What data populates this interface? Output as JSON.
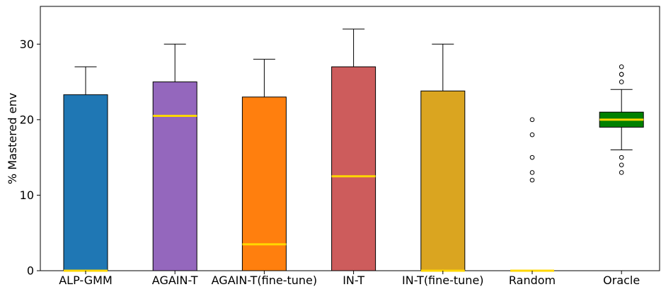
{
  "chart_data": {
    "type": "box",
    "categories": [
      "ALP-GMM",
      "AGAIN-T",
      "AGAIN-T(fine-tune)",
      "IN-T",
      "IN-T(fine-tune)",
      "Random",
      "Oracle"
    ],
    "ylabel": "% Mastered env",
    "xlabel": "",
    "title": "",
    "ylim": [
      0,
      35
    ],
    "yticks": [
      "0",
      "10",
      "20",
      "30"
    ],
    "grid": false,
    "median_color": "#FFD700",
    "boxes": [
      {
        "name": "ALP-GMM",
        "color": "#1f77b4",
        "whislo": 0,
        "q1": 0,
        "med": 0,
        "q3": 23.3,
        "whishi": 27,
        "fliers": []
      },
      {
        "name": "AGAIN-T",
        "color": "#9467bd",
        "whislo": 0,
        "q1": 0,
        "med": 20.5,
        "q3": 25,
        "whishi": 30,
        "fliers": []
      },
      {
        "name": "AGAIN-T(fine-tune)",
        "color": "#ff7f0e",
        "whislo": 0,
        "q1": 0,
        "med": 3.5,
        "q3": 23,
        "whishi": 28,
        "fliers": []
      },
      {
        "name": "IN-T",
        "color": "#cd5c5c",
        "whislo": 0,
        "q1": 0,
        "med": 12.5,
        "q3": 27,
        "whishi": 32,
        "fliers": []
      },
      {
        "name": "IN-T(fine-tune)",
        "color": "#daa520",
        "whislo": 0,
        "q1": 0,
        "med": 0,
        "q3": 23.8,
        "whishi": 30,
        "fliers": []
      },
      {
        "name": "Random",
        "color": "#bbbbbb",
        "whislo": 0,
        "q1": 0,
        "med": 0,
        "q3": 0,
        "whishi": 0,
        "fliers": [
          12,
          13,
          15,
          18,
          20
        ]
      },
      {
        "name": "Oracle",
        "color": "#008000",
        "whislo": 16,
        "q1": 19,
        "med": 20,
        "q3": 21,
        "whishi": 24,
        "fliers": [
          13,
          14,
          15,
          25,
          26,
          26,
          27
        ]
      }
    ]
  }
}
